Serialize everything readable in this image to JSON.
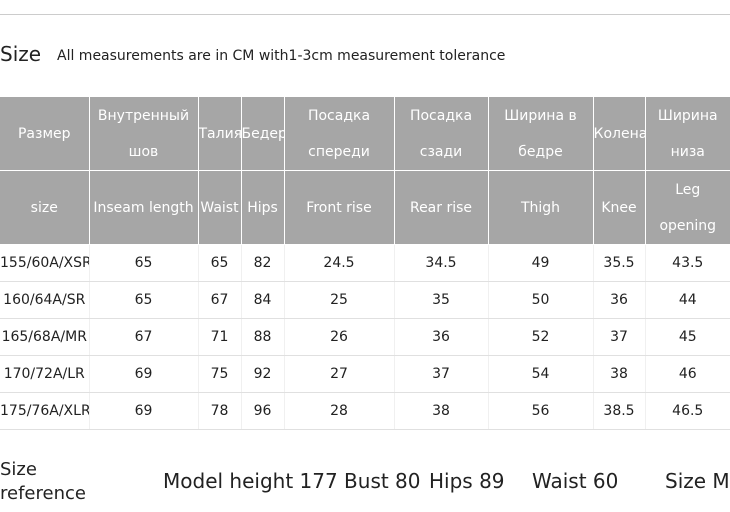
{
  "header": {
    "title": "Size",
    "note": "All measurements are in CM with1-3cm measurement tolerance"
  },
  "table": {
    "header_rows": [
      [
        [
          "Размер"
        ],
        [
          "Внутренный",
          "шов"
        ],
        [
          "Талия"
        ],
        [
          "Бедер"
        ],
        [
          "Посадка",
          "спереди"
        ],
        [
          "Посадка",
          "сзади"
        ],
        [
          "Ширина в",
          "бедре"
        ],
        [
          "Колена"
        ],
        [
          "Ширина",
          "низа"
        ]
      ],
      [
        [
          "size"
        ],
        [
          "Inseam length"
        ],
        [
          "Waist"
        ],
        [
          "Hips"
        ],
        [
          "Front rise"
        ],
        [
          "Rear rise"
        ],
        [
          "Thigh"
        ],
        [
          "Knee"
        ],
        [
          "Leg",
          "opening"
        ]
      ]
    ],
    "rows": [
      [
        "155/60A/XSR",
        "65",
        "65",
        "82",
        "24.5",
        "34.5",
        "49",
        "35.5",
        "43.5"
      ],
      [
        "160/64A/SR",
        "65",
        "67",
        "84",
        "25",
        "35",
        "50",
        "36",
        "44"
      ],
      [
        "165/68A/MR",
        "67",
        "71",
        "88",
        "26",
        "36",
        "52",
        "37",
        "45"
      ],
      [
        "170/72A/LR",
        "69",
        "75",
        "92",
        "27",
        "37",
        "54",
        "38",
        "46"
      ],
      [
        "175/76A/XLR",
        "69",
        "78",
        "96",
        "28",
        "38",
        "56",
        "38.5",
        "46.5"
      ]
    ]
  },
  "footer": {
    "label_lines": [
      "Size",
      "reference"
    ],
    "items": [
      "Model height 177 Bust 80",
      "Hips 89",
      "Waist 60",
      "Size M"
    ]
  }
}
